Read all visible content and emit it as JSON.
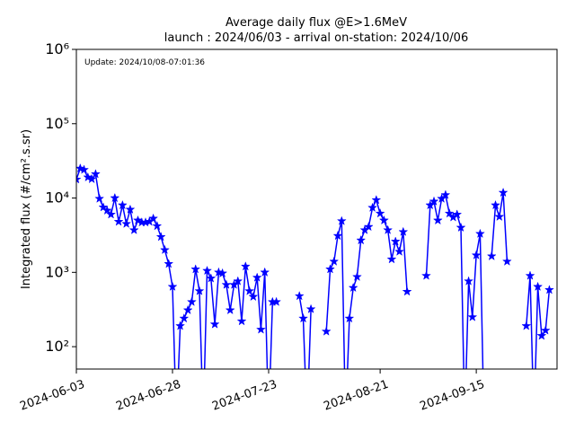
{
  "chart_data": {
    "type": "line",
    "title": "Average daily flux @E>1.6MeV",
    "subtitle": "launch : 2024/06/03 - arrival on-station: 2024/10/06",
    "annotation": "Update: 2024/10/08-07:01:36",
    "y_label": "Integrated flux (#/cm².s.sr)",
    "log_y": true,
    "marker": "star",
    "x": [
      "2024-06-03",
      "2024-06-04",
      "2024-06-05",
      "2024-06-06",
      "2024-06-07",
      "2024-06-08",
      "2024-06-09",
      "2024-06-10",
      "2024-06-11",
      "2024-06-12",
      "2024-06-13",
      "2024-06-14",
      "2024-06-15",
      "2024-06-16",
      "2024-06-17",
      "2024-06-18",
      "2024-06-19",
      "2024-06-20",
      "2024-06-21",
      "2024-06-22",
      "2024-06-23",
      "2024-06-24",
      "2024-06-25",
      "2024-06-26",
      "2024-06-27",
      "2024-06-28",
      "2024-06-29",
      "2024-06-30",
      "2024-07-01",
      "2024-07-02",
      "2024-07-03",
      "2024-07-04",
      "2024-07-05",
      "2024-07-06",
      "2024-07-07",
      "2024-07-08",
      "2024-07-09",
      "2024-07-10",
      "2024-07-11",
      "2024-07-12",
      "2024-07-13",
      "2024-07-14",
      "2024-07-15",
      "2024-07-16",
      "2024-07-17",
      "2024-07-18",
      "2024-07-19",
      "2024-07-20",
      "2024-07-21",
      "2024-07-22",
      "2024-07-23",
      "2024-07-24",
      "2024-07-25",
      "2024-07-26",
      "2024-07-27",
      "2024-07-28",
      "2024-07-29",
      "2024-07-30",
      "2024-07-31",
      "2024-08-01",
      "2024-08-02",
      "2024-08-03",
      "2024-08-04",
      "2024-08-05",
      "2024-08-06",
      "2024-08-07",
      "2024-08-08",
      "2024-08-09",
      "2024-08-10",
      "2024-08-11",
      "2024-08-12",
      "2024-08-13",
      "2024-08-14",
      "2024-08-15",
      "2024-08-16",
      "2024-08-17",
      "2024-08-18",
      "2024-08-19",
      "2024-08-20",
      "2024-08-21",
      "2024-08-22",
      "2024-08-23",
      "2024-08-24",
      "2024-08-25",
      "2024-08-26",
      "2024-08-27",
      "2024-08-28",
      "2024-08-29",
      "2024-08-30",
      "2024-08-31",
      "2024-09-01",
      "2024-09-02",
      "2024-09-03",
      "2024-09-04",
      "2024-09-05",
      "2024-09-06",
      "2024-09-07",
      "2024-09-08",
      "2024-09-09",
      "2024-09-10",
      "2024-09-11",
      "2024-09-12",
      "2024-09-13",
      "2024-09-14",
      "2024-09-15",
      "2024-09-16",
      "2024-09-17",
      "2024-09-18",
      "2024-09-19",
      "2024-09-20",
      "2024-09-21",
      "2024-09-22",
      "2024-09-23",
      "2024-09-24",
      "2024-09-25",
      "2024-09-26",
      "2024-09-27",
      "2024-09-28",
      "2024-09-29",
      "2024-09-30",
      "2024-10-01",
      "2024-10-02",
      "2024-10-03",
      "2024-10-04"
    ],
    "series": [
      {
        "name": "flux",
        "color": "#0000ff",
        "values": [
          17800,
          25000,
          24000,
          19000,
          18000,
          21000,
          9800,
          7500,
          6800,
          6000,
          10000,
          4800,
          8000,
          4500,
          7000,
          3700,
          5000,
          4700,
          4700,
          4800,
          5300,
          4200,
          3000,
          2000,
          1300,
          640,
          0,
          190,
          240,
          310,
          400,
          1100,
          560,
          0,
          1050,
          830,
          200,
          1000,
          970,
          680,
          310,
          680,
          760,
          220,
          1200,
          560,
          470,
          850,
          170,
          1000,
          0,
          400,
          400,
          null,
          null,
          null,
          null,
          null,
          480,
          240,
          0,
          320,
          null,
          null,
          null,
          160,
          1100,
          1400,
          3100,
          4900,
          0,
          240,
          620,
          870,
          2700,
          3700,
          4100,
          7400,
          9400,
          6200,
          5000,
          3700,
          1500,
          2600,
          1900,
          3500,
          550,
          null,
          null,
          null,
          null,
          900,
          8000,
          9000,
          5000,
          9800,
          11000,
          6200,
          5500,
          6000,
          4000,
          0,
          760,
          250,
          1700,
          3300,
          0,
          null,
          1650,
          8000,
          5600,
          11800,
          1400,
          null,
          null,
          null,
          null,
          190,
          900,
          0,
          640,
          140,
          165,
          580
        ]
      }
    ],
    "xlim": [
      "2024-06-03",
      "2024-10-06"
    ],
    "xticks": [
      "2024-06-03",
      "2024-06-28",
      "2024-07-23",
      "2024-08-21",
      "2024-09-15"
    ],
    "ylim": [
      50,
      1000000
    ],
    "yticks": [
      {
        "value": 100,
        "label": "10²"
      },
      {
        "value": 1000,
        "label": "10³"
      },
      {
        "value": 10000,
        "label": "10⁴"
      },
      {
        "value": 100000,
        "label": "10⁵"
      },
      {
        "value": 1000000,
        "label": "10⁶"
      }
    ]
  }
}
